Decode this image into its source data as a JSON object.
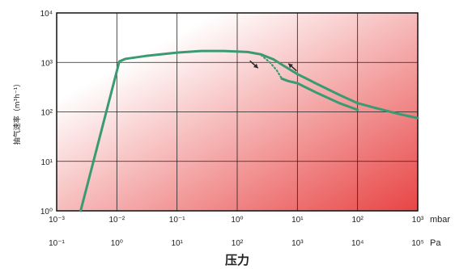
{
  "chart_data": {
    "type": "line",
    "x_scale": "log",
    "y_scale": "log",
    "xlim": [
      0.001,
      1000
    ],
    "ylim": [
      1,
      10000
    ],
    "grid": true,
    "background_gradient": {
      "from": "#ffffff",
      "to": "#e84545",
      "direction": "toward bottom-right"
    },
    "series_color": "#3a9a72",
    "arrow_color": "#2a2a2a",
    "xlabel": "压力",
    "ylabel": "抽气速率（m³h⁻¹）",
    "x_ticks_mbar": [
      "10⁻³",
      "10⁻²",
      "10⁻¹",
      "10⁰",
      "10¹",
      "10²",
      "10³"
    ],
    "x_unit_mbar": "mbar",
    "x_ticks_pa": [
      "10⁻¹",
      "10⁰",
      "10¹",
      "10²",
      "10³",
      "10⁴",
      "10⁵"
    ],
    "x_unit_pa": "Pa",
    "y_ticks": [
      "10⁰",
      "10¹",
      "10²",
      "10³",
      "10⁴"
    ],
    "series": [
      {
        "style": "solid",
        "x": [
          0.0025,
          0.011,
          0.014,
          0.03,
          0.1,
          0.25,
          0.6,
          1.5,
          2.5,
          4,
          6,
          10,
          20,
          50,
          100,
          200,
          500,
          1000
        ],
        "y": [
          1,
          1050,
          1180,
          1350,
          1580,
          1700,
          1700,
          1620,
          1450,
          1150,
          850,
          580,
          380,
          220,
          150,
          120,
          90,
          75
        ]
      },
      {
        "style": "solid",
        "x": [
          5.5,
          7,
          10,
          20,
          50,
          100
        ],
        "y": [
          470,
          420,
          380,
          250,
          150,
          110
        ]
      },
      {
        "style": "dotted",
        "x": [
          2.5,
          3.5,
          4.5,
          5.5
        ],
        "y": [
          1400,
          1000,
          700,
          470
        ]
      }
    ],
    "arrows": [
      {
        "x": 1.9,
        "y": 910
      },
      {
        "x": 8.3,
        "y": 800
      }
    ]
  }
}
